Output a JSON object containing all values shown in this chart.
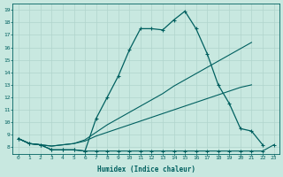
{
  "xlabel": "Humidex (Indice chaleur)",
  "background_color": "#c8e8e0",
  "grid_color": "#b0d4cc",
  "line_color": "#006060",
  "xlim": [
    -0.5,
    23.5
  ],
  "ylim": [
    7.5,
    19.5
  ],
  "xticks": [
    0,
    1,
    2,
    3,
    4,
    5,
    6,
    7,
    8,
    9,
    10,
    11,
    12,
    13,
    14,
    15,
    16,
    17,
    18,
    19,
    20,
    21,
    22,
    23
  ],
  "yticks": [
    8,
    9,
    10,
    11,
    12,
    13,
    14,
    15,
    16,
    17,
    18,
    19
  ],
  "line1": {
    "x": [
      0,
      1,
      2,
      3,
      4,
      5,
      6,
      7,
      8,
      9,
      10,
      11,
      12,
      13,
      14,
      15,
      16,
      17,
      18,
      19,
      20,
      21,
      22,
      23
    ],
    "y": [
      8.7,
      8.3,
      8.2,
      7.8,
      7.8,
      7.8,
      7.7,
      7.7,
      7.7,
      7.7,
      7.7,
      7.7,
      7.7,
      7.7,
      7.7,
      7.7,
      7.7,
      7.7,
      7.7,
      7.7,
      7.7,
      7.7,
      7.7,
      8.2
    ],
    "markers": true
  },
  "line2": {
    "x": [
      0,
      1,
      2,
      3,
      4,
      5,
      6,
      7,
      8,
      9,
      10,
      11,
      12,
      13,
      14,
      15,
      16,
      17,
      18,
      19,
      20,
      21
    ],
    "y": [
      8.7,
      8.3,
      8.2,
      8.1,
      8.2,
      8.3,
      8.5,
      8.9,
      9.2,
      9.5,
      9.8,
      10.1,
      10.4,
      10.7,
      11.0,
      11.3,
      11.6,
      11.9,
      12.2,
      12.5,
      12.8,
      13.0
    ],
    "markers": false
  },
  "line3": {
    "x": [
      0,
      1,
      2,
      3,
      4,
      5,
      6,
      7,
      8,
      9,
      10,
      11,
      12,
      13,
      14,
      15,
      16,
      17,
      18,
      19,
      20,
      21
    ],
    "y": [
      8.7,
      8.3,
      8.2,
      8.1,
      8.2,
      8.3,
      8.6,
      9.2,
      9.8,
      10.3,
      10.8,
      11.3,
      11.8,
      12.3,
      12.9,
      13.4,
      13.9,
      14.4,
      14.9,
      15.4,
      15.9,
      16.4
    ],
    "markers": false
  },
  "line4": {
    "x": [
      0,
      1,
      2,
      3,
      4,
      5,
      6,
      7,
      8,
      9,
      10,
      11,
      12,
      13,
      14,
      15,
      16,
      17,
      18,
      19,
      20,
      21,
      22
    ],
    "y": [
      8.7,
      8.3,
      8.2,
      7.8,
      7.8,
      7.8,
      7.7,
      10.3,
      12.0,
      13.7,
      15.8,
      17.5,
      17.5,
      17.4,
      18.2,
      18.9,
      17.5,
      15.5,
      13.0,
      11.5,
      9.5,
      9.3,
      8.2
    ],
    "markers": true
  }
}
